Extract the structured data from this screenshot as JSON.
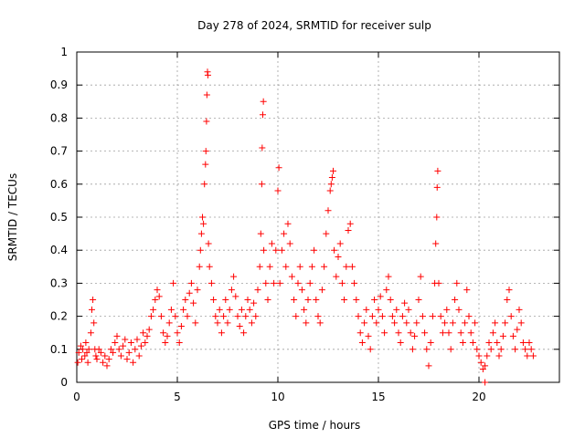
{
  "chart_data": {
    "type": "scatter",
    "title": "Day 278 of 2024, SRMTID for receiver sulp",
    "xlabel": "GPS time / hours",
    "ylabel": "SRMTID / TECUs",
    "xlim": [
      0,
      24
    ],
    "ylim": [
      0,
      1
    ],
    "x_ticks": [
      0,
      5,
      10,
      15,
      20
    ],
    "x_tick_labels": [
      "0",
      "5",
      "10",
      "15",
      "20"
    ],
    "y_ticks": [
      0,
      0.1,
      0.2,
      0.3,
      0.4,
      0.5,
      0.6,
      0.7,
      0.8,
      0.9,
      1
    ],
    "y_tick_labels": [
      "0",
      "0.1",
      "0.2",
      "0.3",
      "0.4",
      "0.5",
      "0.6",
      "0.7",
      "0.8",
      "0.9",
      "1"
    ],
    "grid": true,
    "series": [
      {
        "name": "SRMTID",
        "marker": "plus",
        "color": "#ff0000",
        "points": [
          [
            0.05,
            0.06
          ],
          [
            0.1,
            0.09
          ],
          [
            0.2,
            0.11
          ],
          [
            0.25,
            0.07
          ],
          [
            0.3,
            0.1
          ],
          [
            0.4,
            0.08
          ],
          [
            0.45,
            0.12
          ],
          [
            0.5,
            0.09
          ],
          [
            0.55,
            0.06
          ],
          [
            0.6,
            0.1
          ],
          [
            0.7,
            0.15
          ],
          [
            0.75,
            0.22
          ],
          [
            0.8,
            0.25
          ],
          [
            0.85,
            0.18
          ],
          [
            0.9,
            0.1
          ],
          [
            0.95,
            0.08
          ],
          [
            1.0,
            0.07
          ],
          [
            1.1,
            0.1
          ],
          [
            1.2,
            0.09
          ],
          [
            1.3,
            0.06
          ],
          [
            1.4,
            0.08
          ],
          [
            1.5,
            0.05
          ],
          [
            1.6,
            0.07
          ],
          [
            1.7,
            0.1
          ],
          [
            1.8,
            0.09
          ],
          [
            1.9,
            0.12
          ],
          [
            2.0,
            0.14
          ],
          [
            2.1,
            0.1
          ],
          [
            2.2,
            0.08
          ],
          [
            2.3,
            0.11
          ],
          [
            2.4,
            0.13
          ],
          [
            2.5,
            0.07
          ],
          [
            2.6,
            0.09
          ],
          [
            2.7,
            0.12
          ],
          [
            2.8,
            0.06
          ],
          [
            2.9,
            0.1
          ],
          [
            3.0,
            0.13
          ],
          [
            3.1,
            0.08
          ],
          [
            3.2,
            0.11
          ],
          [
            3.3,
            0.15
          ],
          [
            3.4,
            0.12
          ],
          [
            3.5,
            0.14
          ],
          [
            3.6,
            0.16
          ],
          [
            3.7,
            0.2
          ],
          [
            3.8,
            0.22
          ],
          [
            3.9,
            0.25
          ],
          [
            4.0,
            0.28
          ],
          [
            4.1,
            0.26
          ],
          [
            4.2,
            0.2
          ],
          [
            4.3,
            0.15
          ],
          [
            4.4,
            0.12
          ],
          [
            4.5,
            0.14
          ],
          [
            4.6,
            0.18
          ],
          [
            4.7,
            0.22
          ],
          [
            4.8,
            0.3
          ],
          [
            4.9,
            0.2
          ],
          [
            5.0,
            0.15
          ],
          [
            5.1,
            0.12
          ],
          [
            5.2,
            0.17
          ],
          [
            5.3,
            0.22
          ],
          [
            5.4,
            0.25
          ],
          [
            5.5,
            0.2
          ],
          [
            5.6,
            0.27
          ],
          [
            5.7,
            0.3
          ],
          [
            5.8,
            0.24
          ],
          [
            5.9,
            0.18
          ],
          [
            6.0,
            0.28
          ],
          [
            6.1,
            0.35
          ],
          [
            6.15,
            0.4
          ],
          [
            6.2,
            0.45
          ],
          [
            6.25,
            0.5
          ],
          [
            6.3,
            0.48
          ],
          [
            6.35,
            0.6
          ],
          [
            6.4,
            0.66
          ],
          [
            6.42,
            0.7
          ],
          [
            6.45,
            0.79
          ],
          [
            6.47,
            0.87
          ],
          [
            6.5,
            0.94
          ],
          [
            6.52,
            0.93
          ],
          [
            6.55,
            0.42
          ],
          [
            6.6,
            0.35
          ],
          [
            6.7,
            0.3
          ],
          [
            6.8,
            0.25
          ],
          [
            6.9,
            0.2
          ],
          [
            7.0,
            0.18
          ],
          [
            7.1,
            0.22
          ],
          [
            7.2,
            0.15
          ],
          [
            7.3,
            0.2
          ],
          [
            7.4,
            0.25
          ],
          [
            7.5,
            0.18
          ],
          [
            7.6,
            0.22
          ],
          [
            7.7,
            0.28
          ],
          [
            7.8,
            0.32
          ],
          [
            7.9,
            0.26
          ],
          [
            8.0,
            0.2
          ],
          [
            8.1,
            0.17
          ],
          [
            8.2,
            0.22
          ],
          [
            8.3,
            0.15
          ],
          [
            8.4,
            0.2
          ],
          [
            8.5,
            0.25
          ],
          [
            8.6,
            0.22
          ],
          [
            8.7,
            0.18
          ],
          [
            8.8,
            0.24
          ],
          [
            8.9,
            0.2
          ],
          [
            9.0,
            0.28
          ],
          [
            9.1,
            0.35
          ],
          [
            9.15,
            0.45
          ],
          [
            9.2,
            0.6
          ],
          [
            9.22,
            0.71
          ],
          [
            9.25,
            0.81
          ],
          [
            9.28,
            0.85
          ],
          [
            9.3,
            0.4
          ],
          [
            9.4,
            0.3
          ],
          [
            9.5,
            0.25
          ],
          [
            9.6,
            0.35
          ],
          [
            9.7,
            0.42
          ],
          [
            9.8,
            0.3
          ],
          [
            9.9,
            0.4
          ],
          [
            10.0,
            0.58
          ],
          [
            10.05,
            0.65
          ],
          [
            10.1,
            0.3
          ],
          [
            10.2,
            0.4
          ],
          [
            10.3,
            0.45
          ],
          [
            10.4,
            0.35
          ],
          [
            10.5,
            0.48
          ],
          [
            10.6,
            0.42
          ],
          [
            10.7,
            0.32
          ],
          [
            10.8,
            0.25
          ],
          [
            10.9,
            0.2
          ],
          [
            11.0,
            0.3
          ],
          [
            11.1,
            0.35
          ],
          [
            11.2,
            0.28
          ],
          [
            11.3,
            0.22
          ],
          [
            11.4,
            0.18
          ],
          [
            11.5,
            0.25
          ],
          [
            11.6,
            0.3
          ],
          [
            11.7,
            0.35
          ],
          [
            11.8,
            0.4
          ],
          [
            11.9,
            0.25
          ],
          [
            12.0,
            0.2
          ],
          [
            12.1,
            0.18
          ],
          [
            12.2,
            0.28
          ],
          [
            12.3,
            0.35
          ],
          [
            12.4,
            0.45
          ],
          [
            12.5,
            0.52
          ],
          [
            12.6,
            0.58
          ],
          [
            12.65,
            0.6
          ],
          [
            12.7,
            0.62
          ],
          [
            12.75,
            0.64
          ],
          [
            12.8,
            0.4
          ],
          [
            12.9,
            0.32
          ],
          [
            13.0,
            0.38
          ],
          [
            13.1,
            0.42
          ],
          [
            13.2,
            0.3
          ],
          [
            13.3,
            0.25
          ],
          [
            13.4,
            0.35
          ],
          [
            13.5,
            0.46
          ],
          [
            13.6,
            0.48
          ],
          [
            13.7,
            0.35
          ],
          [
            13.8,
            0.3
          ],
          [
            13.9,
            0.25
          ],
          [
            14.0,
            0.2
          ],
          [
            14.1,
            0.15
          ],
          [
            14.2,
            0.12
          ],
          [
            14.3,
            0.18
          ],
          [
            14.4,
            0.22
          ],
          [
            14.5,
            0.14
          ],
          [
            14.6,
            0.1
          ],
          [
            14.7,
            0.2
          ],
          [
            14.8,
            0.25
          ],
          [
            14.9,
            0.18
          ],
          [
            15.0,
            0.22
          ],
          [
            15.1,
            0.26
          ],
          [
            15.2,
            0.2
          ],
          [
            15.3,
            0.15
          ],
          [
            15.4,
            0.28
          ],
          [
            15.5,
            0.32
          ],
          [
            15.6,
            0.25
          ],
          [
            15.7,
            0.2
          ],
          [
            15.8,
            0.18
          ],
          [
            15.9,
            0.22
          ],
          [
            16.0,
            0.15
          ],
          [
            16.1,
            0.12
          ],
          [
            16.2,
            0.2
          ],
          [
            16.3,
            0.24
          ],
          [
            16.4,
            0.18
          ],
          [
            16.5,
            0.22
          ],
          [
            16.6,
            0.15
          ],
          [
            16.7,
            0.1
          ],
          [
            16.8,
            0.14
          ],
          [
            16.9,
            0.18
          ],
          [
            17.0,
            0.25
          ],
          [
            17.1,
            0.32
          ],
          [
            17.2,
            0.2
          ],
          [
            17.3,
            0.15
          ],
          [
            17.4,
            0.1
          ],
          [
            17.5,
            0.05
          ],
          [
            17.6,
            0.12
          ],
          [
            17.7,
            0.2
          ],
          [
            17.8,
            0.3
          ],
          [
            17.85,
            0.42
          ],
          [
            17.9,
            0.5
          ],
          [
            17.92,
            0.59
          ],
          [
            17.95,
            0.64
          ],
          [
            18.0,
            0.3
          ],
          [
            18.1,
            0.2
          ],
          [
            18.2,
            0.15
          ],
          [
            18.3,
            0.18
          ],
          [
            18.4,
            0.22
          ],
          [
            18.5,
            0.15
          ],
          [
            18.6,
            0.1
          ],
          [
            18.7,
            0.18
          ],
          [
            18.8,
            0.25
          ],
          [
            18.9,
            0.3
          ],
          [
            19.0,
            0.22
          ],
          [
            19.1,
            0.15
          ],
          [
            19.2,
            0.12
          ],
          [
            19.3,
            0.18
          ],
          [
            19.4,
            0.28
          ],
          [
            19.5,
            0.2
          ],
          [
            19.6,
            0.15
          ],
          [
            19.7,
            0.12
          ],
          [
            19.8,
            0.18
          ],
          [
            19.9,
            0.1
          ],
          [
            20.0,
            0.08
          ],
          [
            20.1,
            0.06
          ],
          [
            20.2,
            0.04
          ],
          [
            20.3,
            0.05
          ],
          [
            20.4,
            0.08
          ],
          [
            20.5,
            0.12
          ],
          [
            20.6,
            0.1
          ],
          [
            20.7,
            0.15
          ],
          [
            20.8,
            0.18
          ],
          [
            20.9,
            0.12
          ],
          [
            21.0,
            0.08
          ],
          [
            21.1,
            0.1
          ],
          [
            21.2,
            0.14
          ],
          [
            21.3,
            0.18
          ],
          [
            21.4,
            0.25
          ],
          [
            21.5,
            0.28
          ],
          [
            21.6,
            0.2
          ],
          [
            21.7,
            0.14
          ],
          [
            21.8,
            0.1
          ],
          [
            21.9,
            0.16
          ],
          [
            22.0,
            0.22
          ],
          [
            22.1,
            0.18
          ],
          [
            22.2,
            0.12
          ],
          [
            22.3,
            0.1
          ],
          [
            22.4,
            0.08
          ],
          [
            22.5,
            0.12
          ],
          [
            22.6,
            0.1
          ],
          [
            22.7,
            0.08
          ],
          [
            20.3,
            0.0
          ]
        ]
      }
    ]
  }
}
